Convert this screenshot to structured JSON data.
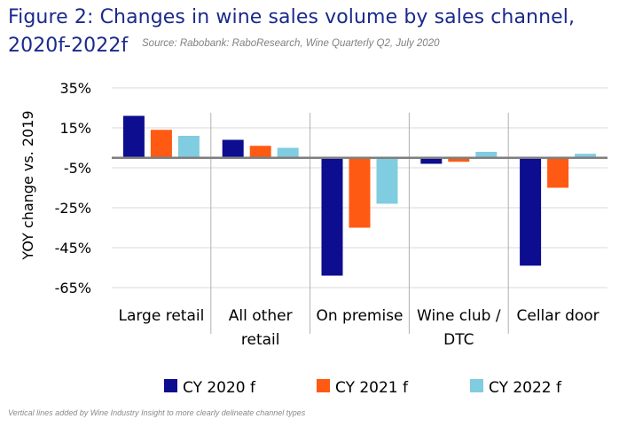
{
  "title_line1": "Figure 2:  Changes in wine sales volume by sales channel,",
  "title_line2": "2020f-2022f",
  "source": "Source: Rabobank: RaboResearch, Wine Quarterly Q2, July 2020",
  "footnote": "Vertical lines added by Wine Industry Insight to more clearly delineate channel types",
  "chart_data": {
    "type": "bar",
    "ylabel": "YOY change vs. 2019",
    "ylim": [
      -65,
      35
    ],
    "yticks": [
      35,
      15,
      -5,
      -25,
      -45,
      -65
    ],
    "ytick_labels": [
      "35%",
      "15%",
      "-5%",
      "-25%",
      "-45%",
      "-65%"
    ],
    "categories": [
      [
        "Large retail"
      ],
      [
        "All other",
        "retail"
      ],
      [
        "On premise"
      ],
      [
        "Wine club /",
        "DTC"
      ],
      [
        "Cellar door"
      ]
    ],
    "grid": true,
    "legend_position": "bottom",
    "series": [
      {
        "name": "CY 2020 f",
        "color": "#0d0d8f",
        "values": [
          21,
          9,
          -59,
          -3,
          -54
        ]
      },
      {
        "name": "CY 2021 f",
        "color": "#ff5a14",
        "values": [
          14,
          6,
          -35,
          -2,
          -15
        ]
      },
      {
        "name": "CY 2022 f",
        "color": "#80cce0",
        "values": [
          11,
          5,
          -23,
          3,
          2
        ]
      }
    ]
  }
}
